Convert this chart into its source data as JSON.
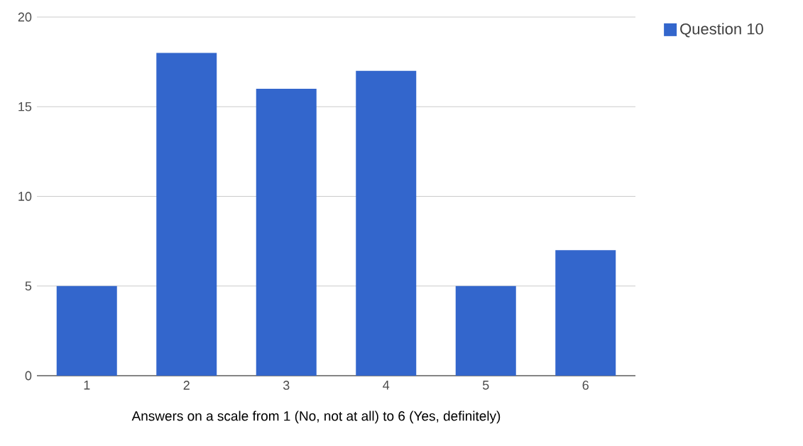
{
  "chart_data": {
    "type": "bar",
    "xlabel": "Answers on a scale from 1 (No, not at all) to 6 (Yes, definitely)",
    "categories": [
      "1",
      "2",
      "3",
      "4",
      "5",
      "6"
    ],
    "series": [
      {
        "name": "Question 10",
        "color": "#3366cc",
        "values": [
          5,
          18,
          16,
          17,
          5,
          7
        ]
      }
    ],
    "ylim": [
      0,
      20
    ],
    "yticks": [
      0,
      5,
      10,
      15,
      20
    ],
    "grid": "y",
    "legend": "top right"
  }
}
